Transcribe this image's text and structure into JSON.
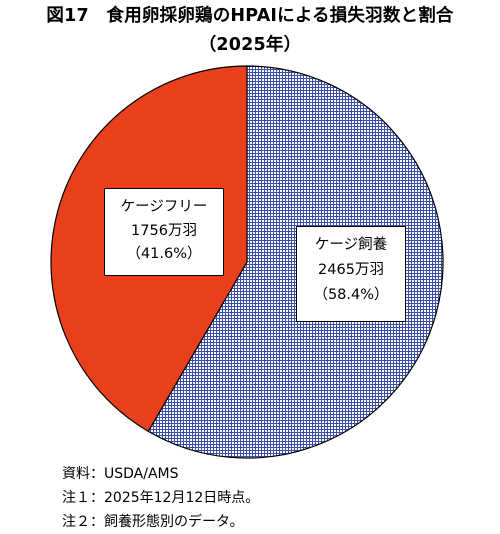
{
  "title_line1": "図17　食用卵採卵鶏のHPAIによる損失羽数と割合",
  "title_line2": "（2025年）",
  "chart_data": {
    "type": "pie",
    "title": "図17　食用卵採卵鶏のHPAIによる損失羽数と割合（2025年）",
    "slices": [
      {
        "name": "ケージ飼養",
        "value": 2465,
        "value_label": "2465万羽",
        "percent": 58.4,
        "percent_label": "（58.4%）",
        "color": "#3a4fa8"
      },
      {
        "name": "ケージフリー",
        "value": 1756,
        "value_label": "1756万羽",
        "percent": 41.6,
        "percent_label": "（41.6%）",
        "color": "#e8401c"
      }
    ],
    "unit": "万羽"
  },
  "notes": [
    "資料：USDA/AMS",
    "注１：2025年12月12日時点。",
    "注２：飼養形態別のデータ。"
  ]
}
